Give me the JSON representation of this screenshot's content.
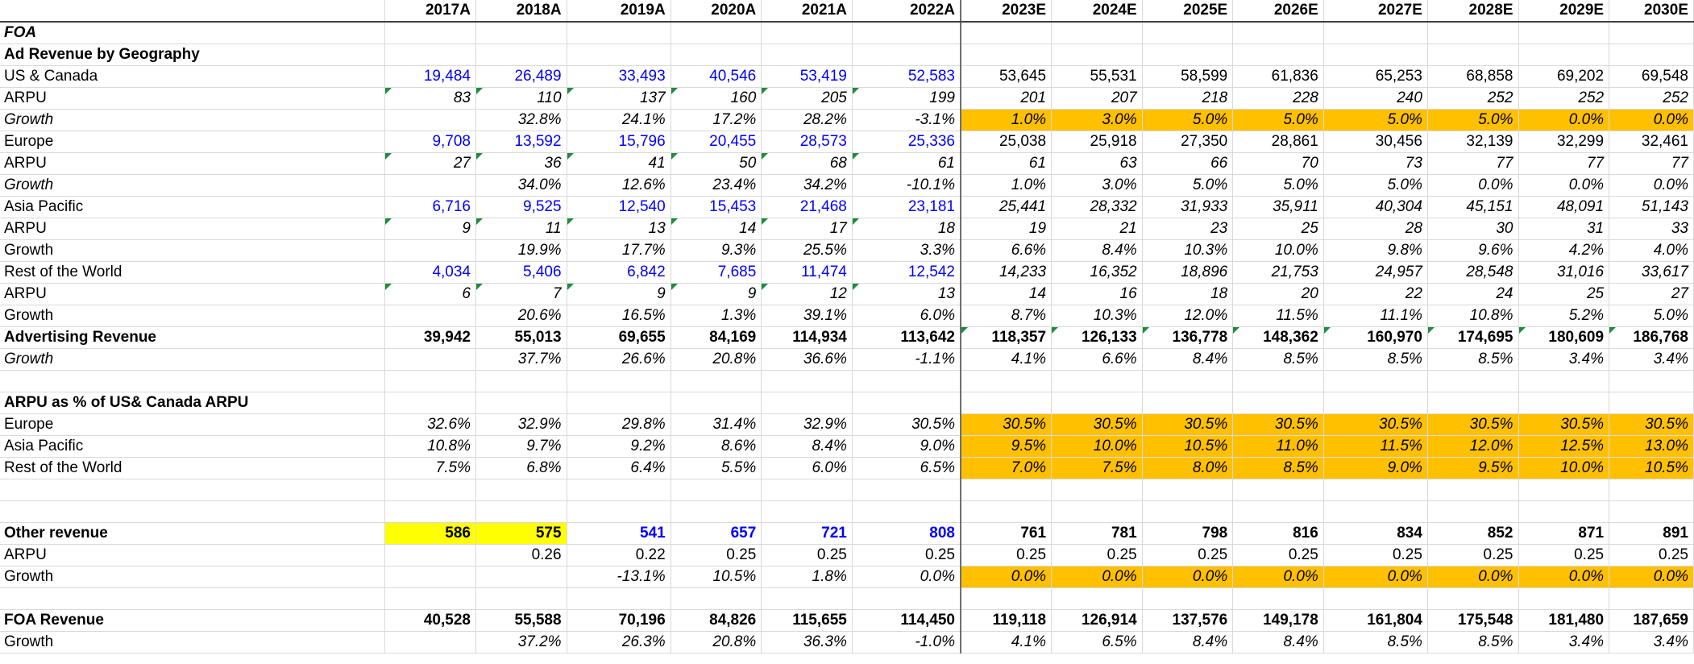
{
  "header": {
    "columns": [
      "2017A",
      "2018A",
      "2019A",
      "2020A",
      "2021A",
      "2022A",
      "2023E",
      "2024E",
      "2025E",
      "2026E",
      "2027E",
      "2028E",
      "2029E",
      "2030E"
    ]
  },
  "rows": [
    {
      "label": "FOA",
      "style": "bold-italic",
      "cells": [
        "",
        "",
        "",
        "",
        "",
        "",
        "",
        "",
        "",
        "",
        "",
        "",
        "",
        ""
      ]
    },
    {
      "label": "Ad Revenue by Geography",
      "style": "bold",
      "cells": [
        "",
        "",
        "",
        "",
        "",
        "",
        "",
        "",
        "",
        "",
        "",
        "",
        "",
        ""
      ]
    },
    {
      "label": "US & Canada",
      "cells": [
        "19,484",
        "26,489",
        "33,493",
        "40,546",
        "53,419",
        "52,583",
        "53,645",
        "55,531",
        "58,599",
        "61,836",
        "65,253",
        "68,858",
        "69,202",
        "69,548"
      ],
      "blue": [
        0,
        1,
        2,
        3,
        4,
        5
      ]
    },
    {
      "label": "ARPU",
      "style": "italic-values",
      "cells": [
        "83",
        "110",
        "137",
        "160",
        "205",
        "199",
        "201",
        "207",
        "218",
        "228",
        "240",
        "252",
        "252",
        "252"
      ],
      "tri": [
        0,
        1,
        2,
        3,
        4,
        5
      ]
    },
    {
      "label": "Growth",
      "style": "italic",
      "cells": [
        "",
        "32.8%",
        "24.1%",
        "17.2%",
        "28.2%",
        "-3.1%",
        "1.0%",
        "3.0%",
        "5.0%",
        "5.0%",
        "5.0%",
        "5.0%",
        "0.0%",
        "0.0%"
      ],
      "orange": [
        6,
        7,
        8,
        9,
        10,
        11,
        12,
        13
      ]
    },
    {
      "label": "Europe",
      "cells": [
        "9,708",
        "13,592",
        "15,796",
        "20,455",
        "28,573",
        "25,336",
        "25,038",
        "25,918",
        "27,350",
        "28,861",
        "30,456",
        "32,139",
        "32,299",
        "32,461"
      ],
      "blue": [
        0,
        1,
        2,
        3,
        4,
        5
      ]
    },
    {
      "label": "ARPU",
      "style": "italic-values",
      "cells": [
        "27",
        "36",
        "41",
        "50",
        "68",
        "61",
        "61",
        "63",
        "66",
        "70",
        "73",
        "77",
        "77",
        "77"
      ],
      "tri": [
        0,
        1,
        2,
        3,
        4,
        5
      ]
    },
    {
      "label": "Growth",
      "style": "italic",
      "cells": [
        "",
        "34.0%",
        "12.6%",
        "23.4%",
        "34.2%",
        "-10.1%",
        "1.0%",
        "3.0%",
        "5.0%",
        "5.0%",
        "5.0%",
        "0.0%",
        "0.0%",
        "0.0%"
      ]
    },
    {
      "label": "Asia Pacific",
      "cells": [
        "6,716",
        "9,525",
        "12,540",
        "15,453",
        "21,468",
        "23,181",
        "25,441",
        "28,332",
        "31,933",
        "35,911",
        "40,304",
        "45,151",
        "48,091",
        "51,143"
      ],
      "blue": [
        0,
        1,
        2,
        3,
        4,
        5
      ],
      "italic_from": 6
    },
    {
      "label": "ARPU",
      "style": "italic-values",
      "cells": [
        "9",
        "11",
        "13",
        "14",
        "17",
        "18",
        "19",
        "21",
        "23",
        "25",
        "28",
        "30",
        "31",
        "33"
      ],
      "tri": [
        0,
        1,
        2,
        3,
        4,
        5
      ]
    },
    {
      "label": "Growth",
      "style": "italic-values",
      "cells": [
        "",
        "19.9%",
        "17.7%",
        "9.3%",
        "25.5%",
        "3.3%",
        "6.6%",
        "8.4%",
        "10.3%",
        "10.0%",
        "9.8%",
        "9.6%",
        "4.2%",
        "4.0%"
      ]
    },
    {
      "label": "Rest of the World",
      "cells": [
        "4,034",
        "5,406",
        "6,842",
        "7,685",
        "11,474",
        "12,542",
        "14,233",
        "16,352",
        "18,896",
        "21,753",
        "24,957",
        "28,548",
        "31,016",
        "33,617"
      ],
      "blue": [
        0,
        1,
        2,
        3,
        4,
        5
      ],
      "italic_from": 6
    },
    {
      "label": "ARPU",
      "style": "italic-values",
      "cells": [
        "6",
        "7",
        "9",
        "9",
        "12",
        "13",
        "14",
        "16",
        "18",
        "20",
        "22",
        "24",
        "25",
        "27"
      ],
      "tri": [
        0,
        1,
        2,
        3,
        4,
        5
      ]
    },
    {
      "label": "Growth",
      "style": "italic-values",
      "cells": [
        "",
        "20.6%",
        "16.5%",
        "1.3%",
        "39.1%",
        "6.0%",
        "8.7%",
        "10.3%",
        "12.0%",
        "11.5%",
        "11.1%",
        "10.8%",
        "5.2%",
        "5.0%"
      ]
    },
    {
      "label": "Advertising Revenue",
      "style": "bold",
      "cells": [
        "39,942",
        "55,013",
        "69,655",
        "84,169",
        "114,934",
        "113,642",
        "118,357",
        "126,133",
        "136,778",
        "148,362",
        "160,970",
        "174,695",
        "180,609",
        "186,768"
      ],
      "tri": [
        6,
        7,
        8,
        9,
        10,
        11,
        12,
        13
      ]
    },
    {
      "label": "Growth",
      "style": "italic",
      "cells": [
        "",
        "37.7%",
        "26.6%",
        "20.8%",
        "36.6%",
        "-1.1%",
        "4.1%",
        "6.6%",
        "8.4%",
        "8.5%",
        "8.5%",
        "8.5%",
        "3.4%",
        "3.4%"
      ]
    },
    {
      "label": "",
      "cells": [
        "",
        "",
        "",
        "",
        "",
        "",
        "",
        "",
        "",
        "",
        "",
        "",
        "",
        ""
      ]
    },
    {
      "label": "ARPU as % of US& Canada ARPU",
      "style": "bold",
      "cells": [
        "",
        "",
        "",
        "",
        "",
        "",
        "",
        "",
        "",
        "",
        "",
        "",
        "",
        ""
      ]
    },
    {
      "label": "Europe",
      "style": "italic-values",
      "cells": [
        "32.6%",
        "32.9%",
        "29.8%",
        "31.4%",
        "32.9%",
        "30.5%",
        "30.5%",
        "30.5%",
        "30.5%",
        "30.5%",
        "30.5%",
        "30.5%",
        "30.5%",
        "30.5%"
      ],
      "orange": [
        6,
        7,
        8,
        9,
        10,
        11,
        12,
        13
      ]
    },
    {
      "label": "Asia Pacific",
      "style": "italic-values",
      "cells": [
        "10.8%",
        "9.7%",
        "9.2%",
        "8.6%",
        "8.4%",
        "9.0%",
        "9.5%",
        "10.0%",
        "10.5%",
        "11.0%",
        "11.5%",
        "12.0%",
        "12.5%",
        "13.0%"
      ],
      "orange": [
        6,
        7,
        8,
        9,
        10,
        11,
        12,
        13
      ]
    },
    {
      "label": "Rest of the World",
      "style": "italic-values",
      "cells": [
        "7.5%",
        "6.8%",
        "6.4%",
        "5.5%",
        "6.0%",
        "6.5%",
        "7.0%",
        "7.5%",
        "8.0%",
        "8.5%",
        "9.0%",
        "9.5%",
        "10.0%",
        "10.5%"
      ],
      "orange": [
        6,
        7,
        8,
        9,
        10,
        11,
        12,
        13
      ]
    },
    {
      "label": "",
      "cells": [
        "",
        "",
        "",
        "",
        "",
        "",
        "",
        "",
        "",
        "",
        "",
        "",
        "",
        ""
      ]
    },
    {
      "label": "",
      "cells": [
        "",
        "",
        "",
        "",
        "",
        "",
        "",
        "",
        "",
        "",
        "",
        "",
        "",
        ""
      ]
    },
    {
      "label": "Other revenue",
      "style": "bold-label",
      "cells": [
        "586",
        "575",
        "541",
        "657",
        "721",
        "808",
        "761",
        "781",
        "798",
        "816",
        "834",
        "852",
        "871",
        "891"
      ],
      "yellow": [
        0,
        1
      ],
      "blue": [
        2,
        3,
        4,
        5
      ]
    },
    {
      "label": "ARPU",
      "cells": [
        "",
        "0.26",
        "0.22",
        "0.25",
        "0.25",
        "0.25",
        "0.25",
        "0.25",
        "0.25",
        "0.25",
        "0.25",
        "0.25",
        "0.25",
        "0.25"
      ]
    },
    {
      "label": "Growth",
      "cells": [
        "",
        "",
        "-13.1%",
        "10.5%",
        "1.8%",
        "0.0%",
        "0.0%",
        "0.0%",
        "0.0%",
        "0.0%",
        "0.0%",
        "0.0%",
        "0.0%",
        "0.0%"
      ],
      "italic_from": 2,
      "orange": [
        6,
        7,
        8,
        9,
        10,
        11,
        12,
        13
      ]
    },
    {
      "label": "",
      "cells": [
        "",
        "",
        "",
        "",
        "",
        "",
        "",
        "",
        "",
        "",
        "",
        "",
        "",
        ""
      ]
    },
    {
      "label": "FOA Revenue",
      "style": "bold",
      "cells": [
        "40,528",
        "55,588",
        "70,196",
        "84,826",
        "115,655",
        "114,450",
        "119,118",
        "126,914",
        "137,576",
        "149,178",
        "161,804",
        "175,548",
        "181,480",
        "187,659"
      ]
    },
    {
      "label": "Growth",
      "style": "italic-values",
      "cells": [
        "",
        "37.2%",
        "26.3%",
        "20.8%",
        "36.3%",
        "-1.0%",
        "4.1%",
        "6.5%",
        "8.4%",
        "8.4%",
        "8.5%",
        "8.5%",
        "3.4%",
        "3.4%"
      ]
    }
  ]
}
